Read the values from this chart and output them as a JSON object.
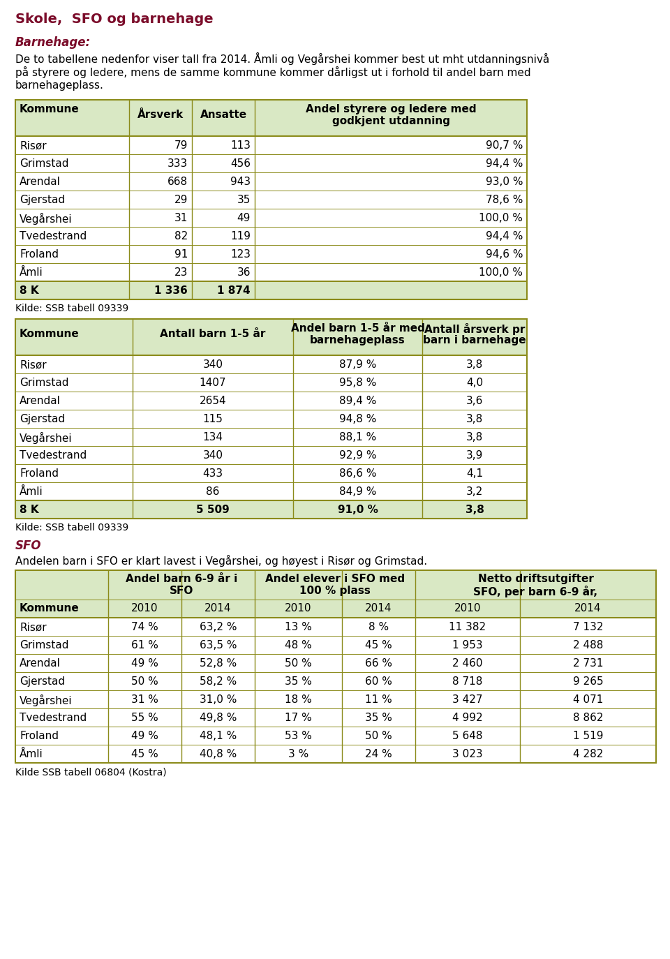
{
  "title": "Skole,  SFO og barnehage",
  "title_color": "#7B0C2A",
  "section1_title": "Barnehage:",
  "section1_title_color": "#7B0C2A",
  "section1_lines": [
    "De to tabellene nedenfor viser tall fra 2014. Åmli og Vegårshei kommer best ut mht utdanningsnivå",
    "på styrere og ledere, mens de samme kommune kommer dårligst ut i forhold til andel barn med",
    "barnehageplass."
  ],
  "table1_data": [
    [
      "Risør",
      "79",
      "113",
      "90,7 %"
    ],
    [
      "Grimstad",
      "333",
      "456",
      "94,4 %"
    ],
    [
      "Arendal",
      "668",
      "943",
      "93,0 %"
    ],
    [
      "Gjerstad",
      "29",
      "35",
      "78,6 %"
    ],
    [
      "Vegårshei",
      "31",
      "49",
      "100,0 %"
    ],
    [
      "Tvedestrand",
      "82",
      "119",
      "94,4 %"
    ],
    [
      "Froland",
      "91",
      "123",
      "94,6 %"
    ],
    [
      "Åmli",
      "23",
      "36",
      "100,0 %"
    ]
  ],
  "table1_total": [
    "8 K",
    "1 336",
    "1 874",
    ""
  ],
  "table1_source": "Kilde: SSB tabell 09339",
  "table2_data": [
    [
      "Risør",
      "340",
      "87,9 %",
      "3,8"
    ],
    [
      "Grimstad",
      "1407",
      "95,8 %",
      "4,0"
    ],
    [
      "Arendal",
      "2654",
      "89,4 %",
      "3,6"
    ],
    [
      "Gjerstad",
      "115",
      "94,8 %",
      "3,8"
    ],
    [
      "Vegårshei",
      "134",
      "88,1 %",
      "3,8"
    ],
    [
      "Tvedestrand",
      "340",
      "92,9 %",
      "3,9"
    ],
    [
      "Froland",
      "433",
      "86,6 %",
      "4,1"
    ],
    [
      "Åmli",
      "86",
      "84,9 %",
      "3,2"
    ]
  ],
  "table2_total": [
    "8 K",
    "5 509",
    "91,0 %",
    "3,8"
  ],
  "table2_source": "Kilde: SSB tabell 09339",
  "section2_title": "SFO",
  "section2_title_color": "#7B0C2A",
  "section2_text": "Andelen barn i SFO er klart lavest i Vegårshei, og høyest i Risør og Grimstad.",
  "table3_data": [
    [
      "Risør",
      "74 %",
      "63,2 %",
      "13 %",
      "8 %",
      "11 382",
      "7 132"
    ],
    [
      "Grimstad",
      "61 %",
      "63,5 %",
      "48 %",
      "45 %",
      "1 953",
      "2 488"
    ],
    [
      "Arendal",
      "49 %",
      "52,8 %",
      "50 %",
      "66 %",
      "2 460",
      "2 731"
    ],
    [
      "Gjerstad",
      "50 %",
      "58,2 %",
      "35 %",
      "60 %",
      "8 718",
      "9 265"
    ],
    [
      "Vegårshei",
      "31 %",
      "31,0 %",
      "18 %",
      "11 %",
      "3 427",
      "4 071"
    ],
    [
      "Tvedestrand",
      "55 %",
      "49,8 %",
      "17 %",
      "35 %",
      "4 992",
      "8 862"
    ],
    [
      "Froland",
      "49 %",
      "48,1 %",
      "53 %",
      "50 %",
      "5 648",
      "1 519"
    ],
    [
      "Åmli",
      "45 %",
      "40,8 %",
      "3 %",
      "24 %",
      "3 023",
      "4 282"
    ]
  ],
  "table3_source": "Kilde SSB tabell 06804 (Kostra)",
  "header_bg": "#D9E8C4",
  "total_bg": "#D9E8C4",
  "border_color": "#8B8B1A",
  "text_color": "#000000",
  "bg_color": "#FFFFFF"
}
